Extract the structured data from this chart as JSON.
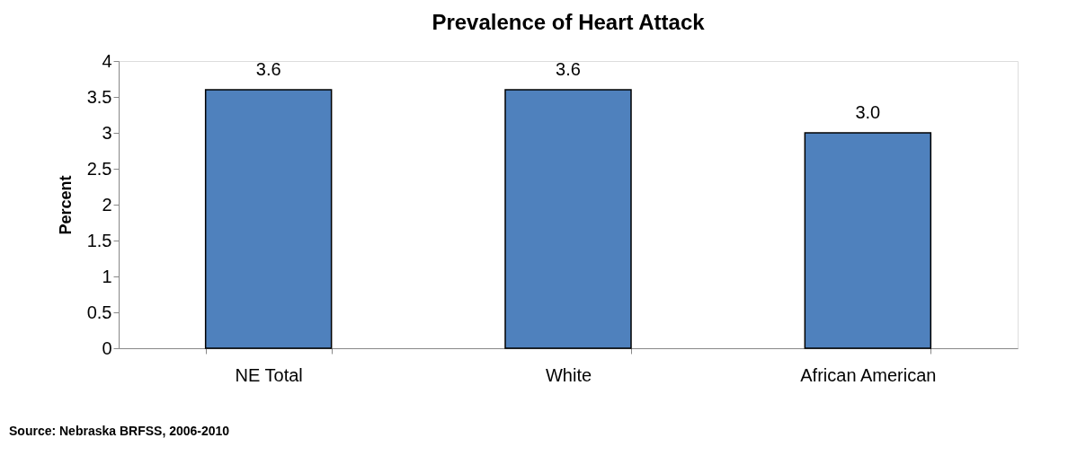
{
  "chart_data": {
    "type": "bar",
    "title": "Prevalence of Heart Attack",
    "ylabel": "Percent",
    "categories": [
      "NE Total",
      "White",
      "African American"
    ],
    "values": [
      3.6,
      3.6,
      3.0
    ],
    "value_labels": [
      "3.6",
      "3.6",
      "3.0"
    ],
    "color": "#4f81bd",
    "ylim": [
      0,
      4
    ],
    "yticks": [
      0,
      0.5,
      1,
      1.5,
      2,
      2.5,
      3,
      3.5,
      4
    ],
    "grid": false,
    "annotations": [
      "Source: Nebraska BRFSS, 2006-2010"
    ]
  }
}
